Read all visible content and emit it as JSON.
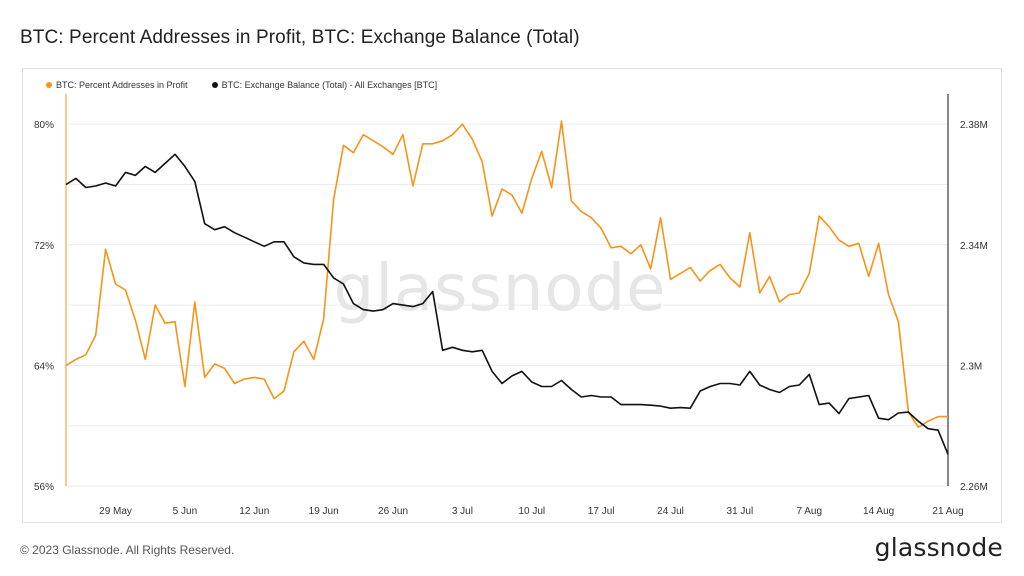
{
  "title": "BTC: Percent Addresses in Profit, BTC: Exchange Balance (Total)",
  "footer": {
    "copyright": "© 2023 Glassnode. All Rights Reserved.",
    "logo": "glassnode"
  },
  "watermark": "glassnode",
  "colors": {
    "profit": "#f7931a",
    "balance": "#111111",
    "grid": "#ececec"
  },
  "legend": [
    {
      "label": "BTC: Percent Addresses in Profit",
      "color": "#f7931a"
    },
    {
      "label": "BTC: Exchange Balance (Total) - All Exchanges [BTC]",
      "color": "#111111"
    }
  ],
  "chart_data": {
    "type": "line",
    "title": "BTC: Percent Addresses in Profit, BTC: Exchange Balance (Total)",
    "x_start": "2023-05-24",
    "x_step_days": 1,
    "x_ticks": [
      "29 May",
      "5 Jun",
      "12 Jun",
      "19 Jun",
      "26 Jun",
      "3 Jul",
      "10 Jul",
      "17 Jul",
      "24 Jul",
      "31 Jul",
      "7 Aug",
      "14 Aug",
      "21 Aug"
    ],
    "y_left": {
      "range": [
        56,
        82
      ],
      "ticks": [
        {
          "value": 56,
          "label": "56%"
        },
        {
          "value": 64,
          "label": "64%"
        },
        {
          "value": 72,
          "label": "72%"
        },
        {
          "value": 80,
          "label": "80%"
        }
      ]
    },
    "y_right": {
      "range": [
        2.26,
        2.39
      ],
      "ticks": [
        {
          "value": 2.26,
          "label": "2.26M"
        },
        {
          "value": 2.3,
          "label": "2.3M"
        },
        {
          "value": 2.34,
          "label": "2.34M"
        },
        {
          "value": 2.38,
          "label": "2.38M"
        }
      ]
    },
    "grid": true,
    "legend_position": "top-left",
    "series": [
      {
        "name": "BTC: Percent Addresses in Profit",
        "axis": "left",
        "values": [
          64.0,
          64.4,
          64.7,
          66.0,
          71.7,
          69.4,
          69.0,
          67.0,
          64.4,
          68.0,
          66.8,
          66.9,
          62.6,
          68.2,
          63.2,
          64.1,
          63.8,
          62.8,
          63.1,
          63.2,
          63.1,
          61.8,
          62.3,
          64.9,
          65.6,
          64.4,
          67.1,
          75.0,
          78.6,
          78.1,
          79.3,
          78.9,
          78.5,
          78.0,
          79.3,
          75.9,
          78.7,
          78.7,
          78.9,
          79.3,
          80.0,
          79.0,
          77.5,
          73.9,
          75.7,
          75.3,
          74.1,
          76.4,
          78.2,
          75.8,
          80.2,
          74.9,
          74.2,
          73.8,
          73.1,
          71.8,
          71.9,
          71.4,
          72.0,
          70.4,
          73.8,
          69.7,
          70.1,
          70.5,
          69.6,
          70.3,
          70.7,
          69.8,
          69.2,
          72.8,
          68.8,
          69.9,
          68.2,
          68.7,
          68.8,
          70.1,
          73.9,
          73.2,
          72.3,
          71.9,
          72.1,
          69.9,
          72.1,
          68.7,
          66.9,
          60.9,
          59.9,
          60.3,
          60.6,
          60.6
        ]
      },
      {
        "name": "BTC: Exchange Balance (Total) - All Exchanges [BTC]",
        "axis": "right",
        "values": [
          2.36,
          2.362,
          2.359,
          2.3595,
          2.3605,
          2.3595,
          2.364,
          2.363,
          2.366,
          2.364,
          2.367,
          2.37,
          2.366,
          2.361,
          2.347,
          2.345,
          2.346,
          2.344,
          2.3425,
          2.341,
          2.3395,
          2.341,
          2.341,
          2.336,
          2.334,
          2.3335,
          2.3335,
          2.329,
          2.327,
          2.3205,
          2.3185,
          2.318,
          2.3185,
          2.3205,
          2.32,
          2.3195,
          2.3205,
          2.3245,
          2.305,
          2.306,
          2.305,
          2.3045,
          2.305,
          2.298,
          2.294,
          2.2965,
          2.298,
          2.2945,
          2.293,
          2.293,
          2.295,
          2.292,
          2.2895,
          2.29,
          2.2895,
          2.2895,
          2.287,
          2.287,
          2.287,
          2.2868,
          2.2865,
          2.2858,
          2.286,
          2.2858,
          2.2915,
          2.293,
          2.294,
          2.294,
          2.2935,
          2.298,
          2.2935,
          2.292,
          2.291,
          2.293,
          2.2935,
          2.297,
          2.287,
          2.2875,
          2.284,
          2.289,
          2.2895,
          2.29,
          2.2825,
          2.282,
          2.2842,
          2.2845,
          2.2815,
          2.279,
          2.2785,
          2.2705
        ]
      }
    ]
  }
}
